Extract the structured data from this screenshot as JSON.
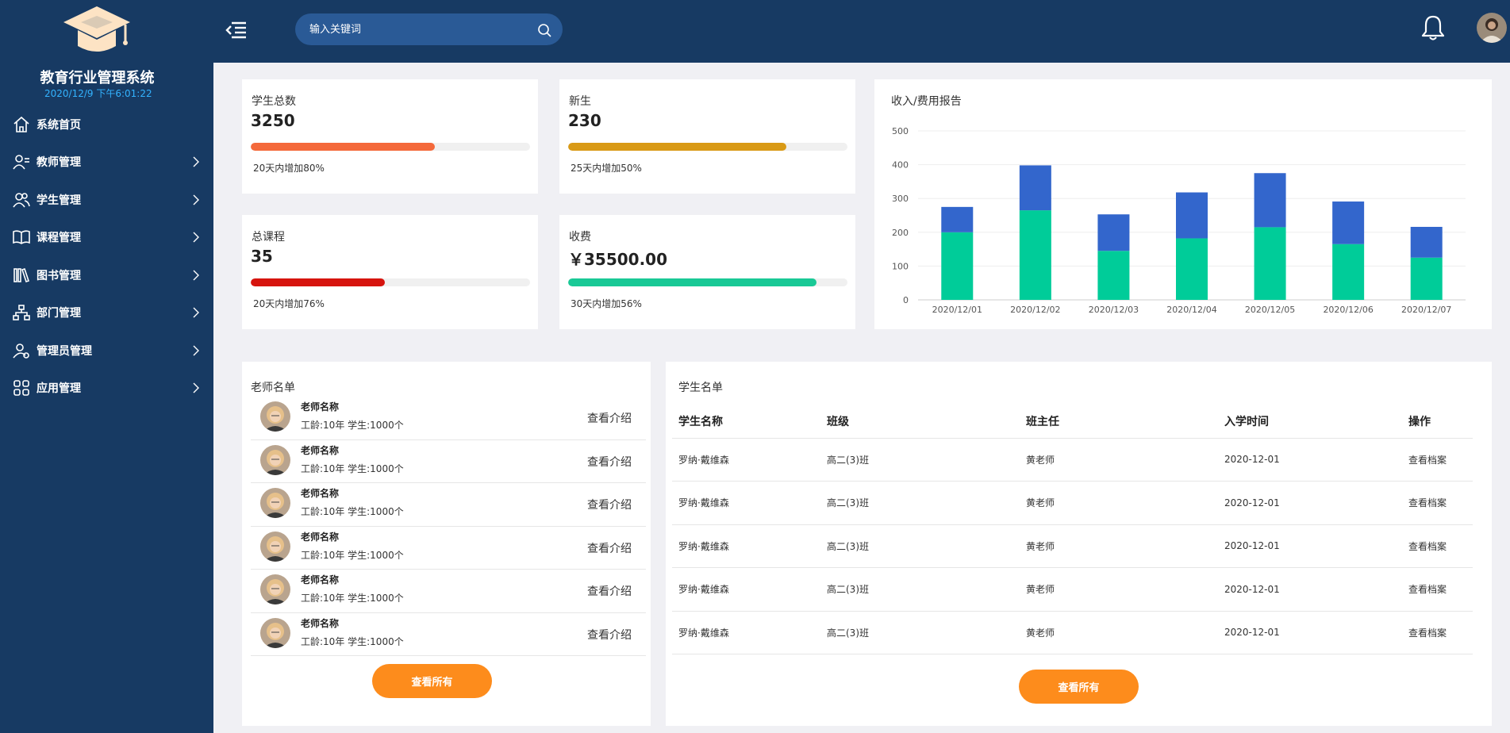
{
  "app": {
    "title": "教育行业管理系统",
    "datetime": "2020/12/9 下午6:01:22"
  },
  "sidebar": {
    "items": [
      {
        "label": "系统首页",
        "icon": "home-icon",
        "has_children": false
      },
      {
        "label": "教师管理",
        "icon": "teacher-icon",
        "has_children": true
      },
      {
        "label": "学生管理",
        "icon": "students-icon",
        "has_children": true
      },
      {
        "label": "课程管理",
        "icon": "book-open-icon",
        "has_children": true
      },
      {
        "label": "图书管理",
        "icon": "library-icon",
        "has_children": true
      },
      {
        "label": "部门管理",
        "icon": "org-chart-icon",
        "has_children": true
      },
      {
        "label": "管理员管理",
        "icon": "admin-user-icon",
        "has_children": true
      },
      {
        "label": "应用管理",
        "icon": "apps-grid-icon",
        "has_children": true
      }
    ]
  },
  "header": {
    "search_placeholder": "输入关键词"
  },
  "stats": [
    {
      "label": "学生总数",
      "value": "3250",
      "note": "20天内增加80%",
      "percent": 66,
      "color": "#f4693b"
    },
    {
      "label": "新生",
      "value": "230",
      "note": "25天内增加50%",
      "percent": 78,
      "color": "#d99a16"
    },
    {
      "label": "总课程",
      "value": "35",
      "note": "20天内增加76%",
      "percent": 48,
      "color": "#d6140e"
    },
    {
      "label": "收费",
      "value": "￥35500.00",
      "note": "30天内增加56%",
      "percent": 89,
      "color": "#19c996"
    }
  ],
  "chart_data": {
    "type": "bar",
    "stacked": true,
    "title": "收入/费用报告",
    "categories": [
      "2020/12/01",
      "2020/12/02",
      "2020/12/03",
      "2020/12/04",
      "2020/12/05",
      "2020/12/06",
      "2020/12/07"
    ],
    "series": [
      {
        "color": "#00cc99",
        "values": [
          200,
          265,
          145,
          182,
          215,
          165,
          125
        ]
      },
      {
        "color": "#3366cc",
        "values": [
          75,
          133,
          108,
          136,
          160,
          126,
          91
        ]
      }
    ],
    "ylim": [
      0,
      500
    ],
    "yticks": [
      0,
      100,
      200,
      300,
      400,
      500
    ],
    "grid": true
  },
  "teachers": {
    "title": "老师名单",
    "rows": [
      {
        "name": "老师名称",
        "meta": "工龄:10年  学生:1000个",
        "link": "查看介绍"
      },
      {
        "name": "老师名称",
        "meta": "工龄:10年  学生:1000个",
        "link": "查看介绍"
      },
      {
        "name": "老师名称",
        "meta": "工龄:10年  学生:1000个",
        "link": "查看介绍"
      },
      {
        "name": "老师名称",
        "meta": "工龄:10年  学生:1000个",
        "link": "查看介绍"
      },
      {
        "name": "老师名称",
        "meta": "工龄:10年  学生:1000个",
        "link": "查看介绍"
      },
      {
        "name": "老师名称",
        "meta": "工龄:10年  学生:1000个",
        "link": "查看介绍"
      }
    ],
    "button": "查看所有"
  },
  "students": {
    "title": "学生名单",
    "columns": [
      "学生名称",
      "班级",
      "班主任",
      "入学时间",
      "操作"
    ],
    "rows": [
      [
        "罗纳·戴维森",
        "高二(3)班",
        "黄老师",
        "2020-12-01",
        "查看档案"
      ],
      [
        "罗纳·戴维森",
        "高二(3)班",
        "黄老师",
        "2020-12-01",
        "查看档案"
      ],
      [
        "罗纳·戴维森",
        "高二(3)班",
        "黄老师",
        "2020-12-01",
        "查看档案"
      ],
      [
        "罗纳·戴维森",
        "高二(3)班",
        "黄老师",
        "2020-12-01",
        "查看档案"
      ],
      [
        "罗纳·戴维森",
        "高二(3)班",
        "黄老师",
        "2020-12-01",
        "查看档案"
      ]
    ],
    "button": "查看所有"
  }
}
